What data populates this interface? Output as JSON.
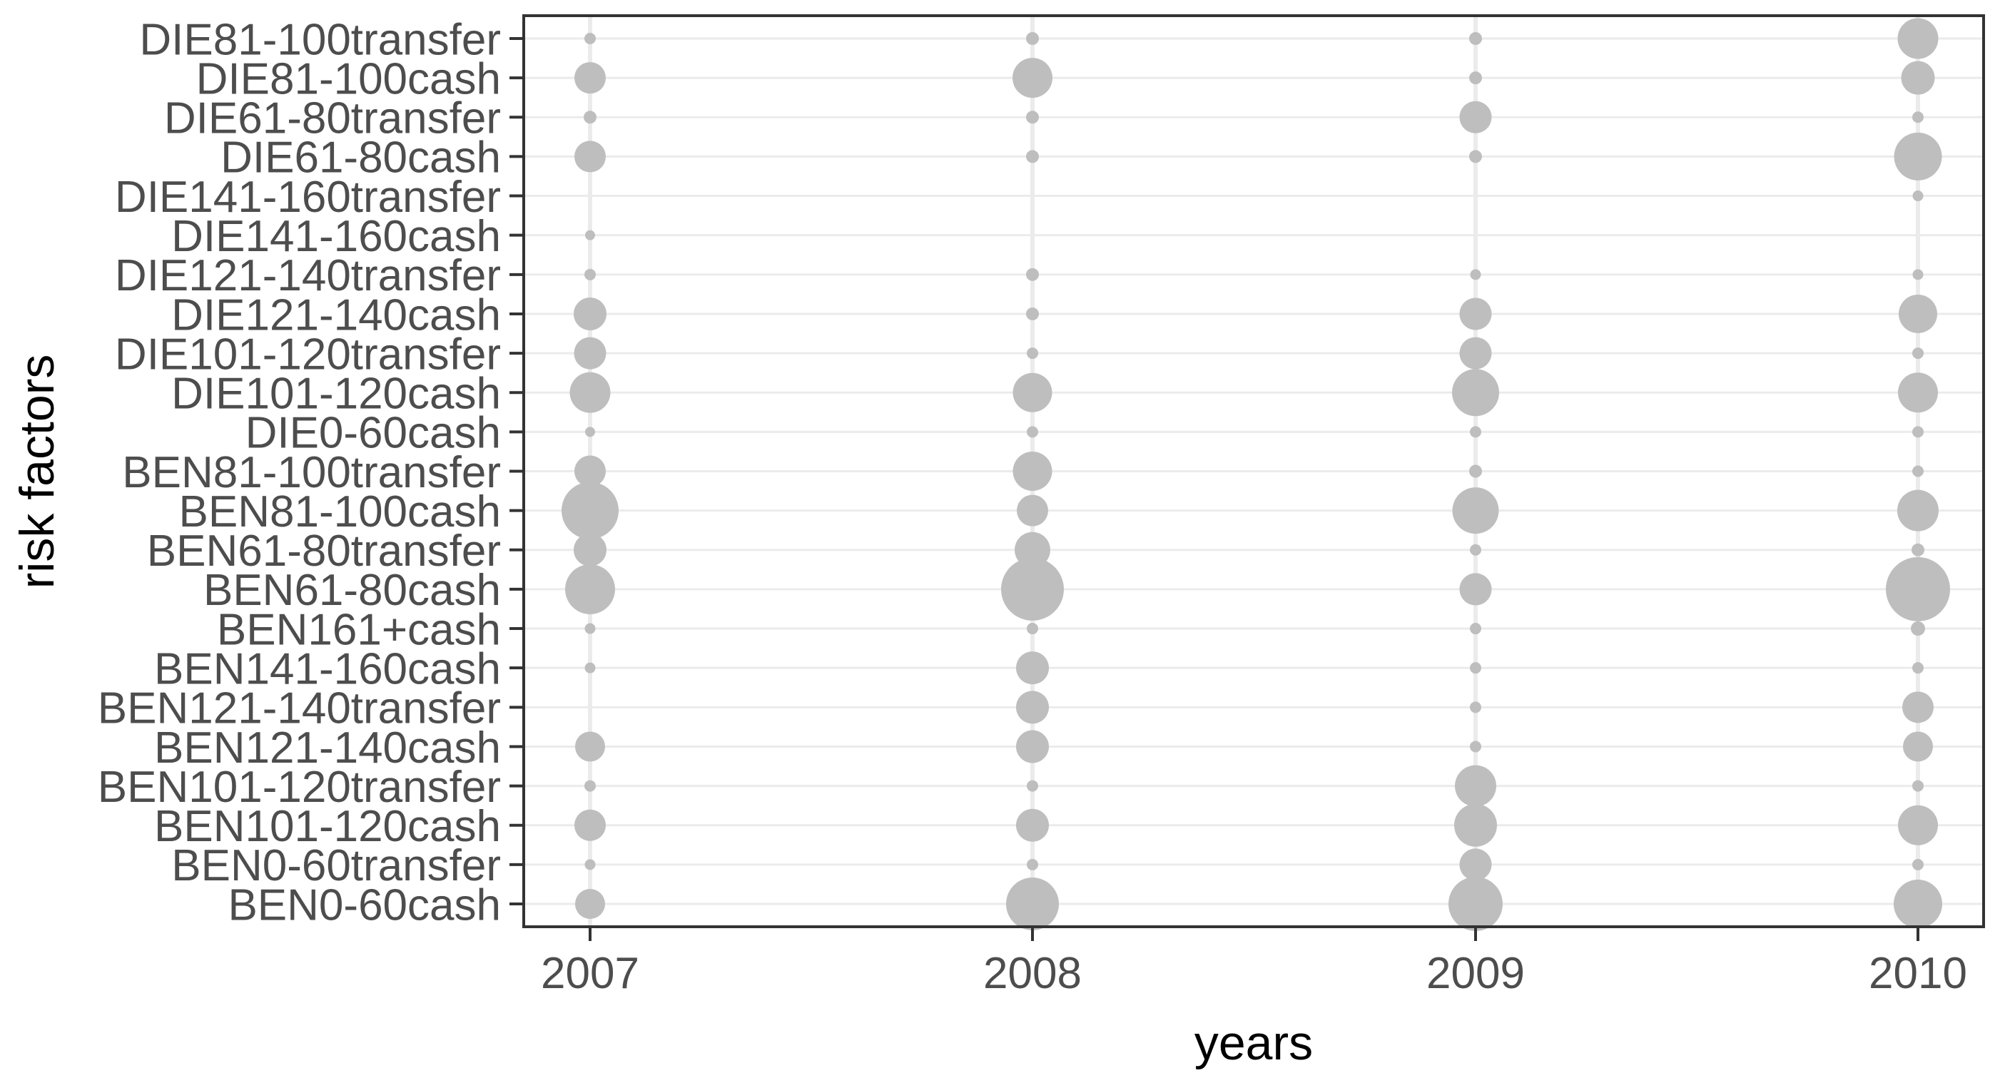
{
  "chart_data": {
    "type": "scatter",
    "subtype": "bubble",
    "title": "",
    "xlabel": "years",
    "ylabel": "risk factors",
    "x_categories": [
      "2007",
      "2008",
      "2009",
      "2010"
    ],
    "y_categories_top_to_bottom": [
      "DIE81-100transfer",
      "DIE81-100cash",
      "DIE61-80transfer",
      "DIE61-80cash",
      "DIE141-160transfer",
      "DIE141-160cash",
      "DIE121-140transfer",
      "DIE121-140cash",
      "DIE101-120transfer",
      "DIE101-120cash",
      "DIE0-60cash",
      "BEN81-100transfer",
      "BEN81-100cash",
      "BEN61-80transfer",
      "BEN61-80cash",
      "BEN161+cash",
      "BEN141-160cash",
      "BEN121-140transfer",
      "BEN121-140cash",
      "BEN101-120transfer",
      "BEN101-120cash",
      "BEN0-60transfer",
      "BEN0-60cash"
    ],
    "size_encoding": "bubble diameter in screen pixels, per year column; 0 means no point drawn",
    "series": [
      {
        "name": "DIE81-100transfer",
        "sizes": [
          16,
          18,
          18,
          57
        ]
      },
      {
        "name": "DIE81-100cash",
        "sizes": [
          44,
          56,
          18,
          47
        ]
      },
      {
        "name": "DIE61-80transfer",
        "sizes": [
          18,
          18,
          45,
          16
        ]
      },
      {
        "name": "DIE61-80cash",
        "sizes": [
          44,
          18,
          18,
          67
        ]
      },
      {
        "name": "DIE141-160transfer",
        "sizes": [
          0,
          0,
          0,
          15
        ]
      },
      {
        "name": "DIE141-160cash",
        "sizes": [
          14,
          0,
          0,
          0
        ]
      },
      {
        "name": "DIE121-140transfer",
        "sizes": [
          16,
          18,
          15,
          15
        ]
      },
      {
        "name": "DIE121-140cash",
        "sizes": [
          46,
          18,
          45,
          54
        ]
      },
      {
        "name": "DIE101-120transfer",
        "sizes": [
          45,
          16,
          45,
          16
        ]
      },
      {
        "name": "DIE101-120cash",
        "sizes": [
          57,
          55,
          66,
          56
        ]
      },
      {
        "name": "DIE0-60cash",
        "sizes": [
          14,
          16,
          16,
          16
        ]
      },
      {
        "name": "BEN81-100transfer",
        "sizes": [
          44,
          55,
          18,
          16
        ]
      },
      {
        "name": "BEN81-100cash",
        "sizes": [
          80,
          44,
          65,
          58
        ]
      },
      {
        "name": "BEN61-80transfer",
        "sizes": [
          46,
          50,
          16,
          18
        ]
      },
      {
        "name": "BEN61-80cash",
        "sizes": [
          70,
          88,
          45,
          90
        ]
      },
      {
        "name": "BEN161+cash",
        "sizes": [
          15,
          16,
          16,
          20
        ]
      },
      {
        "name": "BEN141-160cash",
        "sizes": [
          15,
          46,
          16,
          16
        ]
      },
      {
        "name": "BEN121-140transfer",
        "sizes": [
          0,
          46,
          16,
          44
        ]
      },
      {
        "name": "BEN121-140cash",
        "sizes": [
          42,
          46,
          16,
          42
        ]
      },
      {
        "name": "BEN101-120transfer",
        "sizes": [
          16,
          16,
          58,
          16
        ]
      },
      {
        "name": "BEN101-120cash",
        "sizes": [
          44,
          46,
          60,
          56
        ]
      },
      {
        "name": "BEN0-60transfer",
        "sizes": [
          15,
          16,
          45,
          16
        ]
      },
      {
        "name": "BEN0-60cash",
        "sizes": [
          42,
          74,
          76,
          68
        ]
      }
    ],
    "legend": "none",
    "grid": true,
    "colors": {
      "bubble": "#bebebe",
      "gridline": "#ebebeb",
      "panel_border": "#333333",
      "tick_mark": "#333333",
      "tick_label": "#4d4d4d",
      "axis_title": "#000000",
      "background": "#ffffff"
    }
  }
}
